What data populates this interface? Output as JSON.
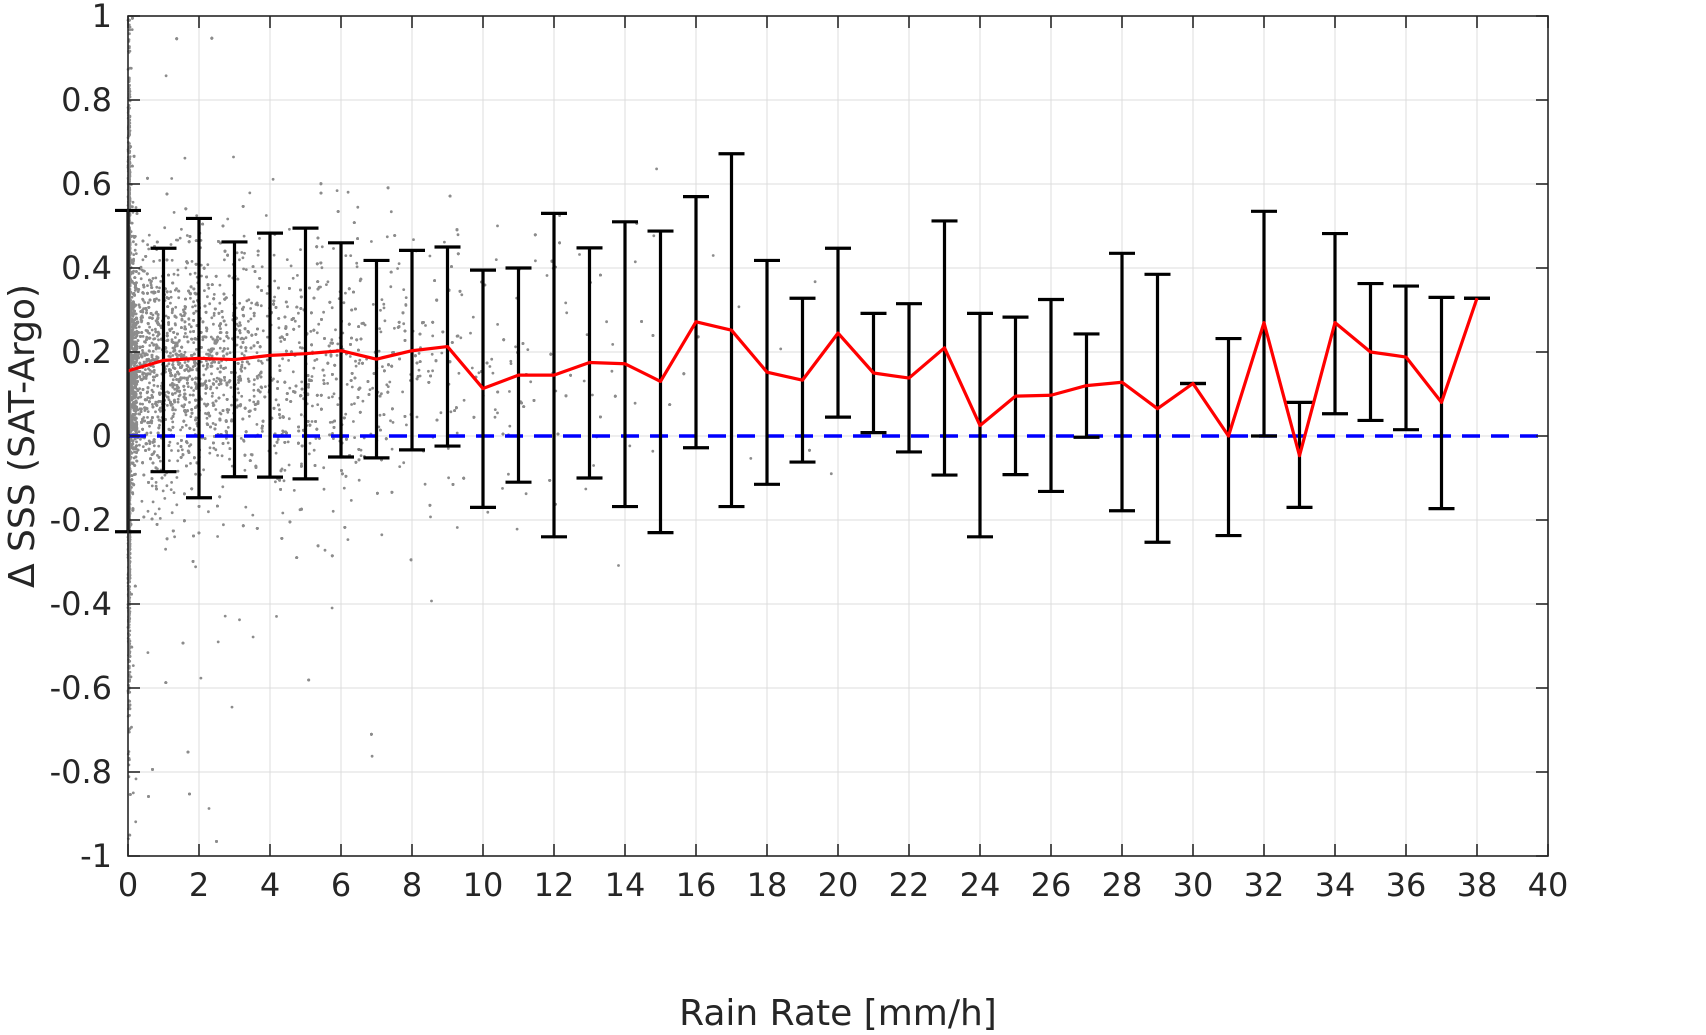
{
  "chart_data": {
    "type": "scatter",
    "title": "",
    "xlabel": "Rain Rate [mm/h]",
    "ylabel": "Δ SSS (SAT-Argo)",
    "xlim": [
      0,
      40
    ],
    "ylim": [
      -1,
      1
    ],
    "xticks": [
      "0",
      "2",
      "4",
      "6",
      "8",
      "10",
      "12",
      "14",
      "16",
      "18",
      "20",
      "22",
      "24",
      "26",
      "28",
      "30",
      "32",
      "34",
      "36",
      "38",
      "40"
    ],
    "yticks": [
      "-1",
      "-0.8",
      "-0.6",
      "-0.4",
      "-0.2",
      "0",
      "0.2",
      "0.4",
      "0.6",
      "0.8",
      "1"
    ],
    "grid": true,
    "legend": "none",
    "colors": {
      "scatter": "#8c8c8c",
      "mean_line": "#ff0000",
      "errorbar": "#000000",
      "zero_line": "#0000ff"
    },
    "series": [
      {
        "kind": "scatter-cloud",
        "description_of_points": "dense cloud of gray points, concentrated near x=0 and thinning with rain rate",
        "x_range": [
          0,
          38
        ],
        "y_range": [
          -1,
          1
        ]
      },
      {
        "kind": "line-with-errorbars",
        "x": [
          0,
          1,
          2,
          3,
          4,
          5,
          6,
          7,
          8,
          9,
          10,
          11,
          12,
          13,
          14,
          15,
          16,
          17,
          18,
          19,
          20,
          21,
          22,
          23,
          24,
          25,
          26,
          27,
          28,
          29,
          30,
          31,
          32,
          33,
          34,
          35,
          36,
          37,
          38
        ],
        "mean": [
          0.155,
          0.18,
          0.185,
          0.182,
          0.192,
          0.196,
          0.203,
          0.183,
          0.203,
          0.213,
          0.113,
          0.145,
          0.145,
          0.175,
          0.172,
          0.13,
          0.272,
          0.252,
          0.152,
          0.133,
          0.245,
          0.15,
          0.138,
          0.21,
          0.025,
          0.095,
          0.097,
          0.12,
          0.128,
          0.065,
          0.125,
          0.0,
          0.27,
          -0.047,
          0.27,
          0.2,
          0.188,
          0.08,
          0.328
        ],
        "upper": [
          0.537,
          0.447,
          0.518,
          0.462,
          0.483,
          0.495,
          0.46,
          0.418,
          0.442,
          0.45,
          0.395,
          0.4,
          0.53,
          0.448,
          0.51,
          0.488,
          0.57,
          0.672,
          0.418,
          0.328,
          0.447,
          0.292,
          0.315,
          0.512,
          0.292,
          0.283,
          0.325,
          0.243,
          0.435,
          0.385,
          0.125,
          0.232,
          0.535,
          0.08,
          0.482,
          0.363,
          0.357,
          0.33,
          0.328
        ],
        "lower": [
          -0.228,
          -0.085,
          -0.147,
          -0.097,
          -0.098,
          -0.102,
          -0.05,
          -0.052,
          -0.033,
          -0.024,
          -0.17,
          -0.11,
          -0.24,
          -0.1,
          -0.168,
          -0.23,
          -0.028,
          -0.168,
          -0.115,
          -0.062,
          0.045,
          0.008,
          -0.038,
          -0.093,
          -0.24,
          -0.092,
          -0.132,
          -0.003,
          -0.178,
          -0.253,
          0.125,
          -0.237,
          0.0,
          -0.17,
          0.053,
          0.037,
          0.015,
          -0.173,
          0.328
        ]
      },
      {
        "kind": "reference-line",
        "style": "dashed",
        "y": 0
      }
    ]
  }
}
